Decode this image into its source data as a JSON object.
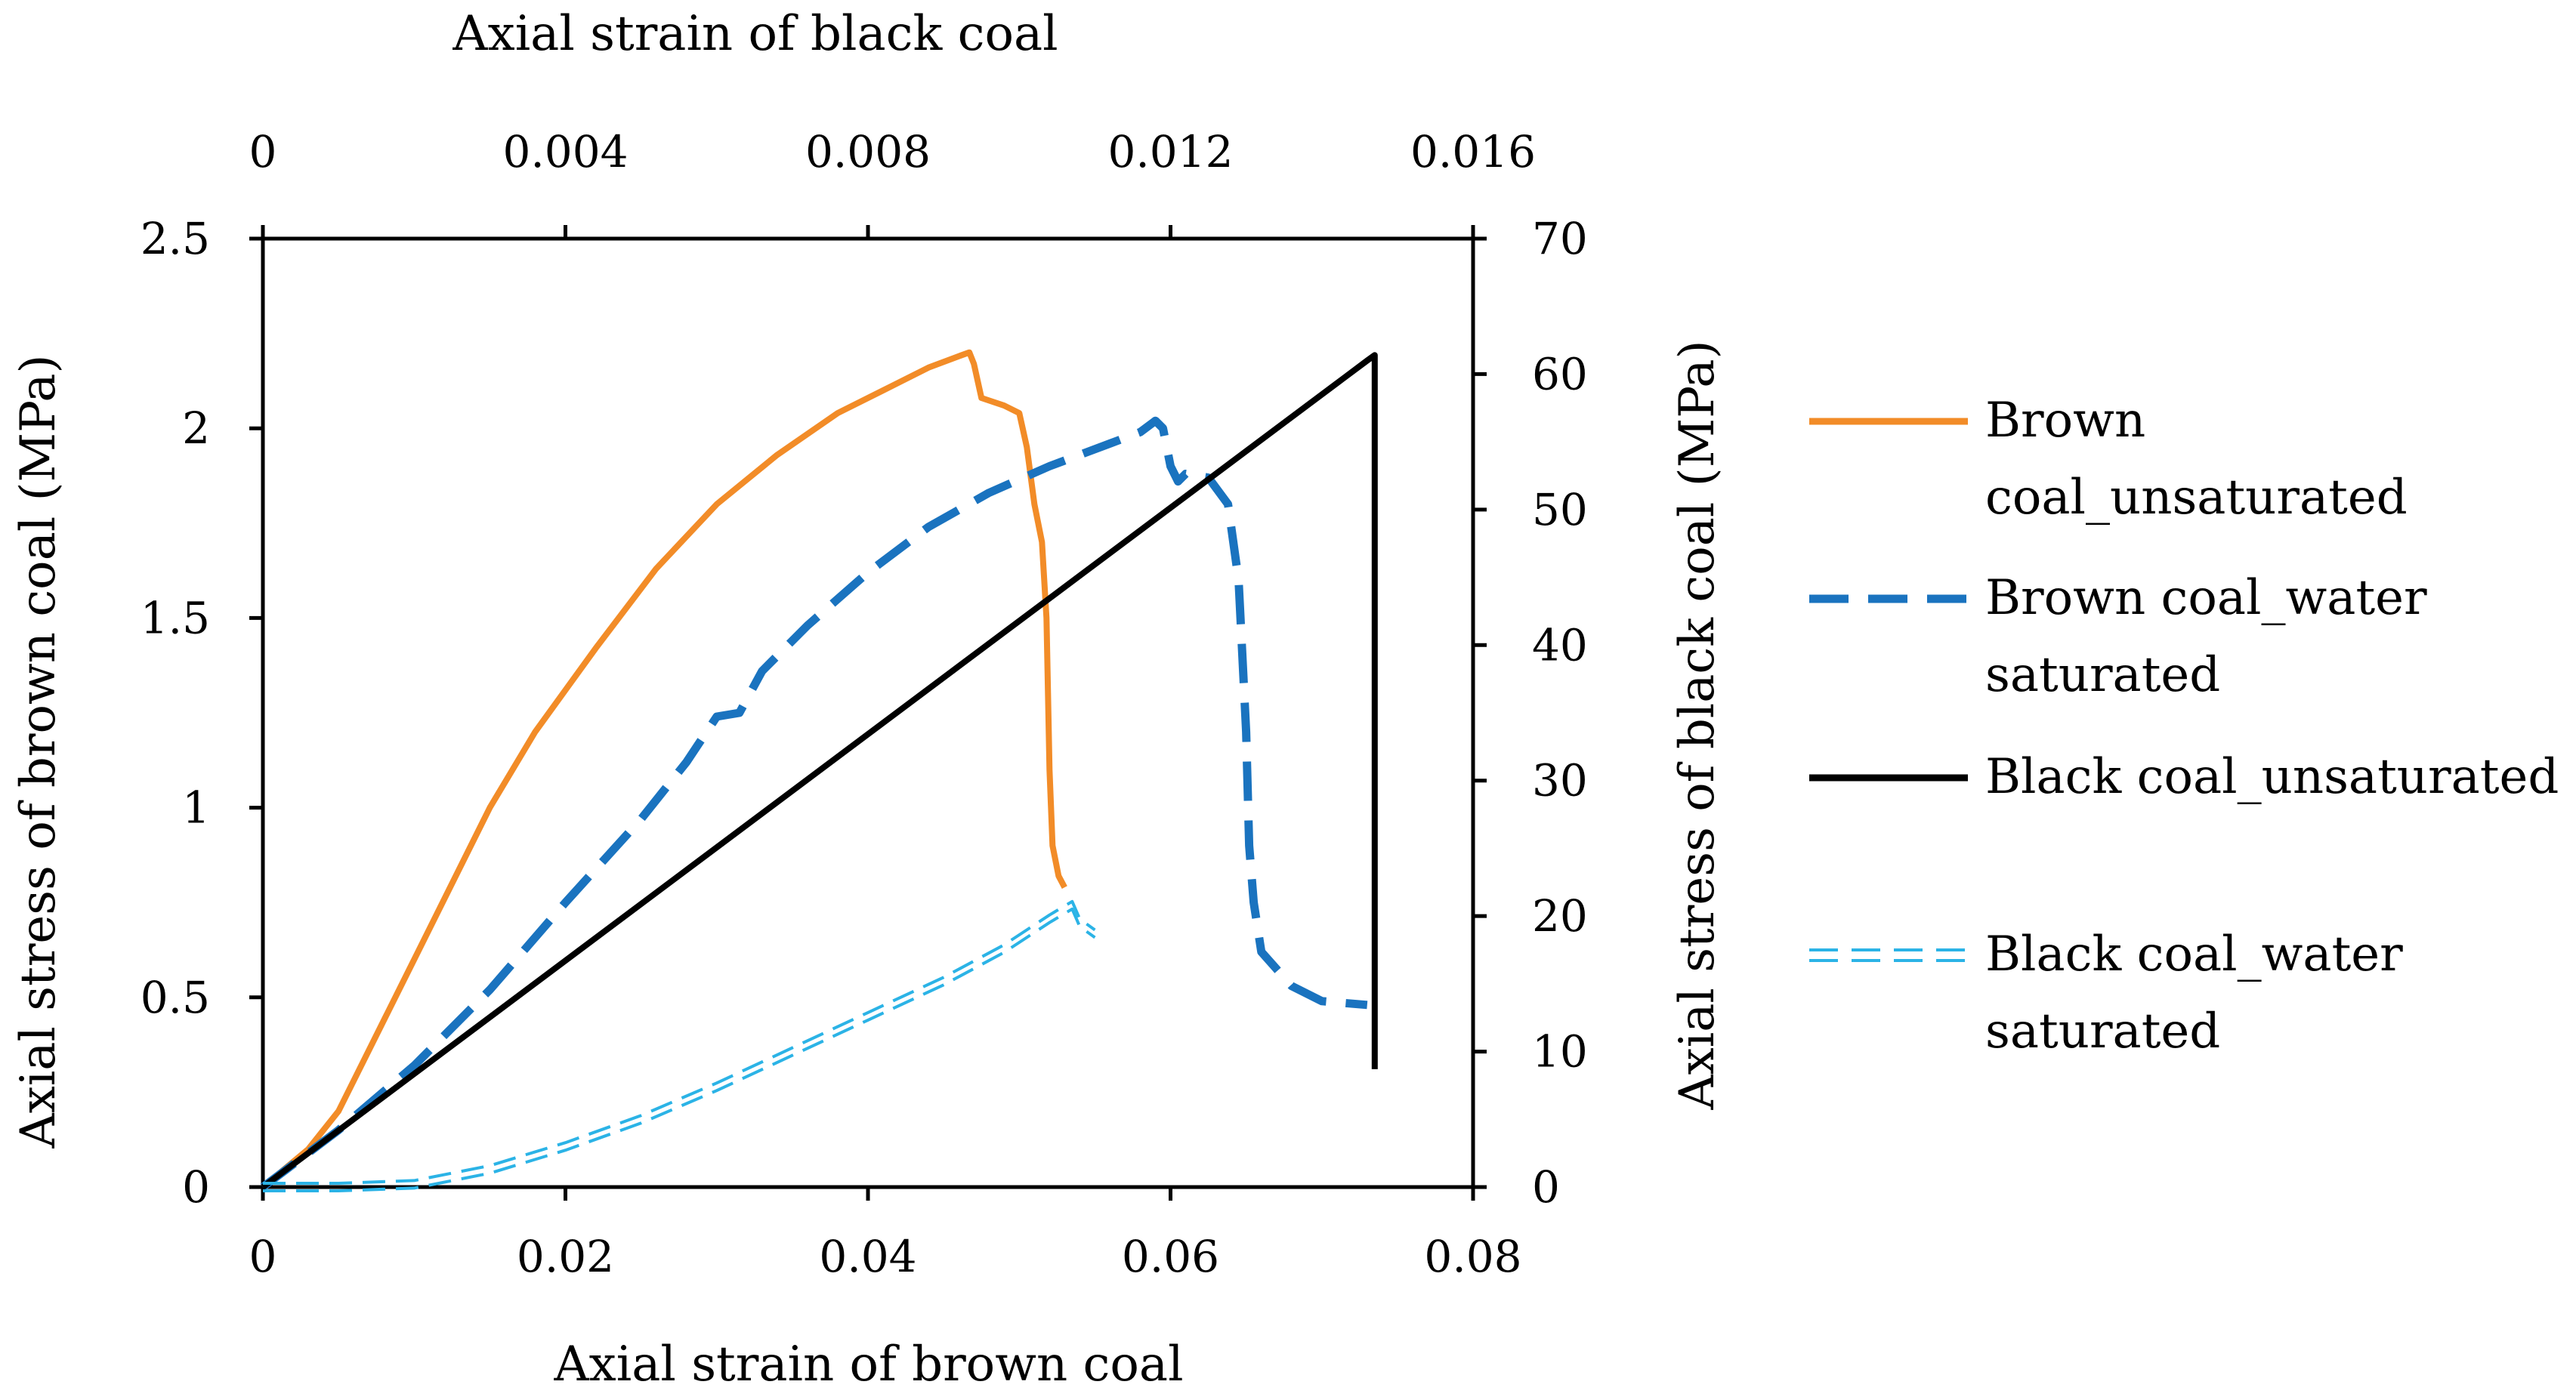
{
  "chart_data": {
    "type": "line",
    "title": "",
    "x_bottom": {
      "label": "Axial strain of brown coal",
      "range": [
        0,
        0.08
      ],
      "ticks": [
        "0",
        "0.02",
        "0.04",
        "0.06",
        "0.08"
      ],
      "tick_values": [
        0,
        0.02,
        0.04,
        0.06,
        0.08
      ]
    },
    "x_top": {
      "label": "Axial strain of black coal",
      "range": [
        0,
        0.016
      ],
      "ticks": [
        "0",
        "0.004",
        "0.008",
        "0.012",
        "0.016"
      ],
      "tick_values": [
        0,
        0.004,
        0.008,
        0.012,
        0.016
      ]
    },
    "y_left": {
      "label": "Axial stress of brown coal (MPa)",
      "range": [
        0,
        2.5
      ],
      "ticks": [
        "0",
        "0.5",
        "1",
        "1.5",
        "2",
        "2.5"
      ],
      "tick_values": [
        0,
        0.5,
        1,
        1.5,
        2,
        2.5
      ]
    },
    "y_right": {
      "label": "Axial stress of black coal (MPa)",
      "range": [
        0,
        70
      ],
      "ticks": [
        "0",
        "10",
        "20",
        "30",
        "40",
        "50",
        "60",
        "70"
      ],
      "tick_values": [
        0,
        10,
        20,
        30,
        40,
        50,
        60,
        70
      ]
    },
    "series": [
      {
        "name": "Brown coal_unsaturated",
        "legend_lines": [
          "Brown",
          "coal_unsaturated"
        ],
        "axes": "bottom-left",
        "color": "#F28C28",
        "style": "solid",
        "x": [
          0,
          0.003,
          0.005,
          0.01,
          0.015,
          0.018,
          0.022,
          0.026,
          0.03,
          0.034,
          0.038,
          0.041,
          0.044,
          0.046,
          0.0467,
          0.047,
          0.0475,
          0.049,
          0.05,
          0.0505,
          0.051,
          0.0515,
          0.0518,
          0.052,
          0.0522,
          0.0526,
          0.053
        ],
        "y": [
          0,
          0.1,
          0.2,
          0.6,
          1.0,
          1.2,
          1.42,
          1.63,
          1.8,
          1.93,
          2.04,
          2.1,
          2.16,
          2.19,
          2.2,
          2.17,
          2.08,
          2.06,
          2.04,
          1.95,
          1.8,
          1.7,
          1.5,
          1.1,
          0.9,
          0.82,
          0.79
        ]
      },
      {
        "name": "Brown coal_water saturated",
        "legend_lines": [
          "Brown coal_water",
          "saturated"
        ],
        "axes": "bottom-left",
        "color": "#1A73BF",
        "style": "dashed",
        "x": [
          0,
          0.002,
          0.005,
          0.01,
          0.015,
          0.02,
          0.025,
          0.028,
          0.03,
          0.0315,
          0.033,
          0.036,
          0.04,
          0.044,
          0.048,
          0.052,
          0.056,
          0.058,
          0.059,
          0.0595,
          0.06,
          0.0605,
          0.061,
          0.0625,
          0.0638,
          0.0645,
          0.065,
          0.0652,
          0.0655,
          0.066,
          0.068,
          0.07,
          0.073
        ],
        "y": [
          0,
          0.06,
          0.15,
          0.32,
          0.52,
          0.75,
          0.97,
          1.12,
          1.24,
          1.25,
          1.36,
          1.48,
          1.62,
          1.74,
          1.83,
          1.9,
          1.96,
          1.99,
          2.02,
          2.0,
          1.9,
          1.86,
          1.88,
          1.87,
          1.8,
          1.6,
          1.2,
          0.9,
          0.75,
          0.62,
          0.53,
          0.49,
          0.48
        ]
      },
      {
        "name": "Black coal_unsaturated",
        "legend_lines": [
          "Black coal_unsaturated"
        ],
        "axes": "top-right",
        "color": "#000000",
        "style": "solid",
        "x": [
          0,
          0.0146,
          0.0147,
          0.0147
        ],
        "y": [
          0,
          61,
          61.4,
          8.7
        ]
      },
      {
        "name": "Black coal_water saturated",
        "legend_lines": [
          "Black coal_water",
          "saturated"
        ],
        "axes": "top-right",
        "color": "#2BB3E6",
        "style": "double-dashed",
        "x": [
          0,
          0.001,
          0.002,
          0.003,
          0.004,
          0.005,
          0.006,
          0.007,
          0.008,
          0.009,
          0.0098,
          0.0104,
          0.0107,
          0.0108,
          0.011
        ],
        "y": [
          0,
          0,
          0.2,
          1.3,
          3.0,
          5.0,
          7.4,
          10.0,
          12.6,
          15.2,
          17.6,
          19.8,
          20.8,
          19.5,
          18.7
        ]
      }
    ]
  }
}
